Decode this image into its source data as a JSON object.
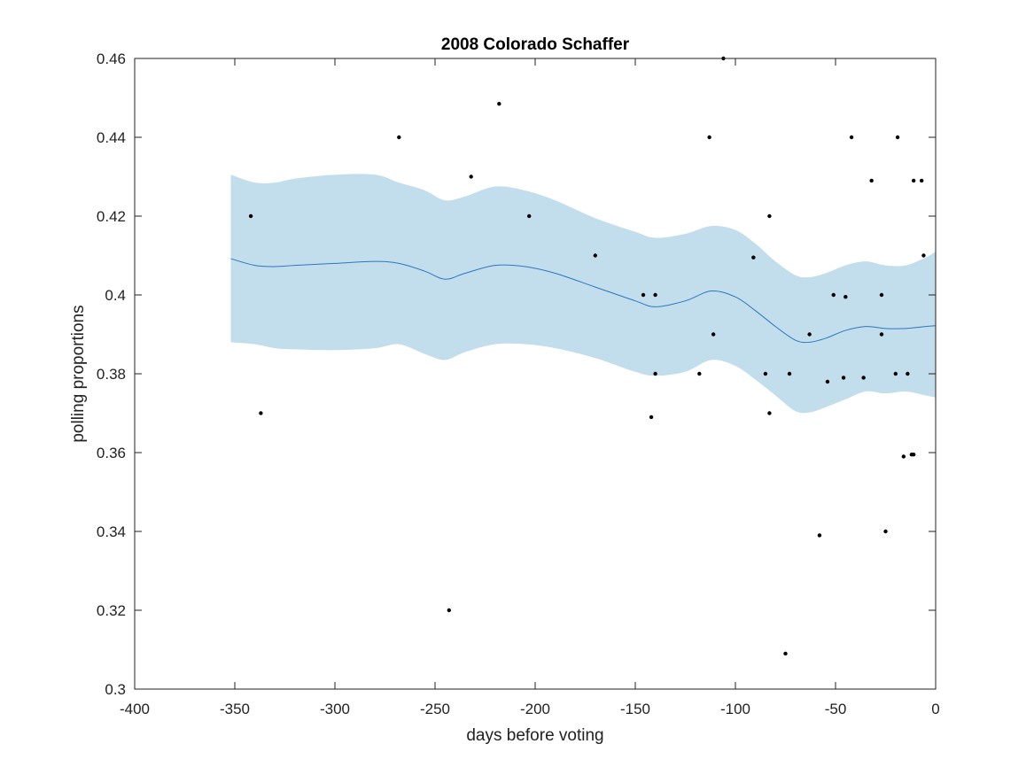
{
  "chart_data": {
    "type": "scatter",
    "title": "2008 Colorado Schaffer",
    "xlabel": "days before voting",
    "ylabel": "polling proportions",
    "xlim": [
      -400,
      0
    ],
    "ylim": [
      0.3,
      0.46
    ],
    "xticks": [
      -400,
      -350,
      -300,
      -250,
      -200,
      -150,
      -100,
      -50,
      0
    ],
    "yticks": [
      0.3,
      0.32,
      0.34,
      0.36,
      0.38,
      0.4,
      0.42,
      0.44,
      0.46
    ],
    "xtick_labels": [
      "-400",
      "-350",
      "-300",
      "-250",
      "-200",
      "-150",
      "-100",
      "-50",
      "0"
    ],
    "ytick_labels": [
      "0.3",
      "0.32",
      "0.34",
      "0.36",
      "0.38",
      "0.4",
      "0.42",
      "0.44",
      "0.46"
    ],
    "grid": false,
    "colors": {
      "band": "#c2ddeb",
      "line": "#2a78c2",
      "points": "#000000",
      "axes": "#222222"
    },
    "points": [
      [
        -342,
        0.42
      ],
      [
        -337,
        0.37
      ],
      [
        -268,
        0.44
      ],
      [
        -243,
        0.32
      ],
      [
        -232,
        0.43
      ],
      [
        -218,
        0.4485
      ],
      [
        -203,
        0.42
      ],
      [
        -170,
        0.41
      ],
      [
        -146,
        0.4
      ],
      [
        -142,
        0.369
      ],
      [
        -140,
        0.4
      ],
      [
        -140,
        0.38
      ],
      [
        -118,
        0.38
      ],
      [
        -113,
        0.44
      ],
      [
        -111,
        0.39
      ],
      [
        -106,
        0.46
      ],
      [
        -91,
        0.4095
      ],
      [
        -85,
        0.38
      ],
      [
        -83,
        0.42
      ],
      [
        -83,
        0.37
      ],
      [
        -75,
        0.309
      ],
      [
        -73,
        0.38
      ],
      [
        -63,
        0.39
      ],
      [
        -58,
        0.339
      ],
      [
        -54,
        0.378
      ],
      [
        -51,
        0.4
      ],
      [
        -46,
        0.379
      ],
      [
        -45,
        0.3995
      ],
      [
        -42,
        0.44
      ],
      [
        -36,
        0.379
      ],
      [
        -32,
        0.429
      ],
      [
        -27,
        0.4
      ],
      [
        -27,
        0.39
      ],
      [
        -25,
        0.34
      ],
      [
        -20,
        0.38
      ],
      [
        -19,
        0.44
      ],
      [
        -16,
        0.359
      ],
      [
        -14,
        0.38
      ],
      [
        -12,
        0.3595
      ],
      [
        -11,
        0.429
      ],
      [
        -11,
        0.3595
      ],
      [
        -7,
        0.429
      ],
      [
        -6,
        0.41
      ]
    ],
    "series": [
      {
        "x": [
          -352,
          -340,
          -330,
          -320,
          -300,
          -280,
          -268,
          -255,
          -245,
          -235,
          -220,
          -205,
          -190,
          -170,
          -150,
          -140,
          -125,
          -112,
          -100,
          -90,
          -80,
          -70,
          -63,
          -55,
          -45,
          -35,
          -25,
          -15,
          -5,
          0
        ],
        "mean": [
          0.4092,
          0.4075,
          0.4072,
          0.4075,
          0.408,
          0.4085,
          0.408,
          0.406,
          0.404,
          0.4055,
          0.4075,
          0.4072,
          0.4055,
          0.402,
          0.3985,
          0.397,
          0.3985,
          0.401,
          0.3995,
          0.396,
          0.392,
          0.3885,
          0.388,
          0.389,
          0.391,
          0.392,
          0.3915,
          0.3915,
          0.392,
          0.3922
        ],
        "upper": [
          0.4305,
          0.4285,
          0.4285,
          0.4295,
          0.4305,
          0.4305,
          0.4285,
          0.4265,
          0.424,
          0.425,
          0.4275,
          0.4265,
          0.424,
          0.4195,
          0.416,
          0.4145,
          0.4155,
          0.4175,
          0.4165,
          0.413,
          0.4085,
          0.405,
          0.4045,
          0.4055,
          0.4075,
          0.4085,
          0.4075,
          0.4075,
          0.4095,
          0.411
        ],
        "lower": [
          0.388,
          0.3875,
          0.3865,
          0.3862,
          0.386,
          0.3865,
          0.3875,
          0.385,
          0.3835,
          0.3855,
          0.3875,
          0.3875,
          0.3865,
          0.384,
          0.3805,
          0.3795,
          0.3805,
          0.3835,
          0.382,
          0.3785,
          0.3745,
          0.3705,
          0.3702,
          0.3715,
          0.3735,
          0.3755,
          0.375,
          0.3755,
          0.3745,
          0.374
        ]
      }
    ]
  }
}
